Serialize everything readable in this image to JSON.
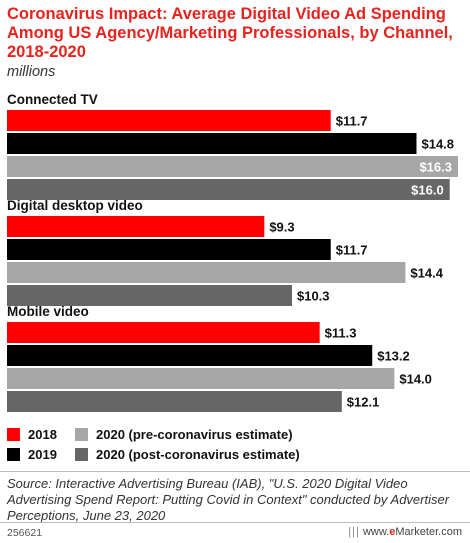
{
  "header": {
    "title": "Coronavirus Impact: Average Digital Video Ad Spending Among US Agency/Marketing Professionals, by Channel, 2018-2020",
    "subtitle": "millions"
  },
  "chart_data": {
    "type": "bar",
    "orientation": "horizontal",
    "categories": [
      "Connected TV",
      "Digital desktop video",
      "Mobile video"
    ],
    "series": [
      {
        "name": "2018",
        "color": "#ff0000",
        "values": [
          11.7,
          9.3,
          11.3
        ],
        "labels": [
          "$11.7",
          "$9.3",
          "$11.3"
        ]
      },
      {
        "name": "2019",
        "color": "#000000",
        "values": [
          14.8,
          11.7,
          13.2
        ],
        "labels": [
          "$14.8",
          "$11.7",
          "$13.2"
        ]
      },
      {
        "name": "2020 (pre-coronavirus estimate)",
        "color": "#a6a6a6",
        "values": [
          16.3,
          14.4,
          14.0
        ],
        "labels": [
          "$16.3",
          "$14.4",
          "$14.0"
        ]
      },
      {
        "name": "2020 (post-coronavirus estimate)",
        "color": "#666666",
        "values": [
          16.0,
          10.3,
          12.1
        ],
        "labels": [
          "$16.0",
          "$10.3",
          "$12.1"
        ]
      }
    ],
    "xlim": [
      0,
      16.3
    ],
    "grid": false,
    "legend_position": "bottom"
  },
  "source": "Source: Interactive Advertising Bureau (IAB), \"U.S. 2020 Digital Video Advertising Spend Report: Putting Covid in Context\" conducted by Advertiser Perceptions, June 23, 2020",
  "footer": {
    "chart_id": "256621",
    "brand_prefix": "www.",
    "brand_e": "e",
    "brand_rest": "Marketer.com"
  }
}
